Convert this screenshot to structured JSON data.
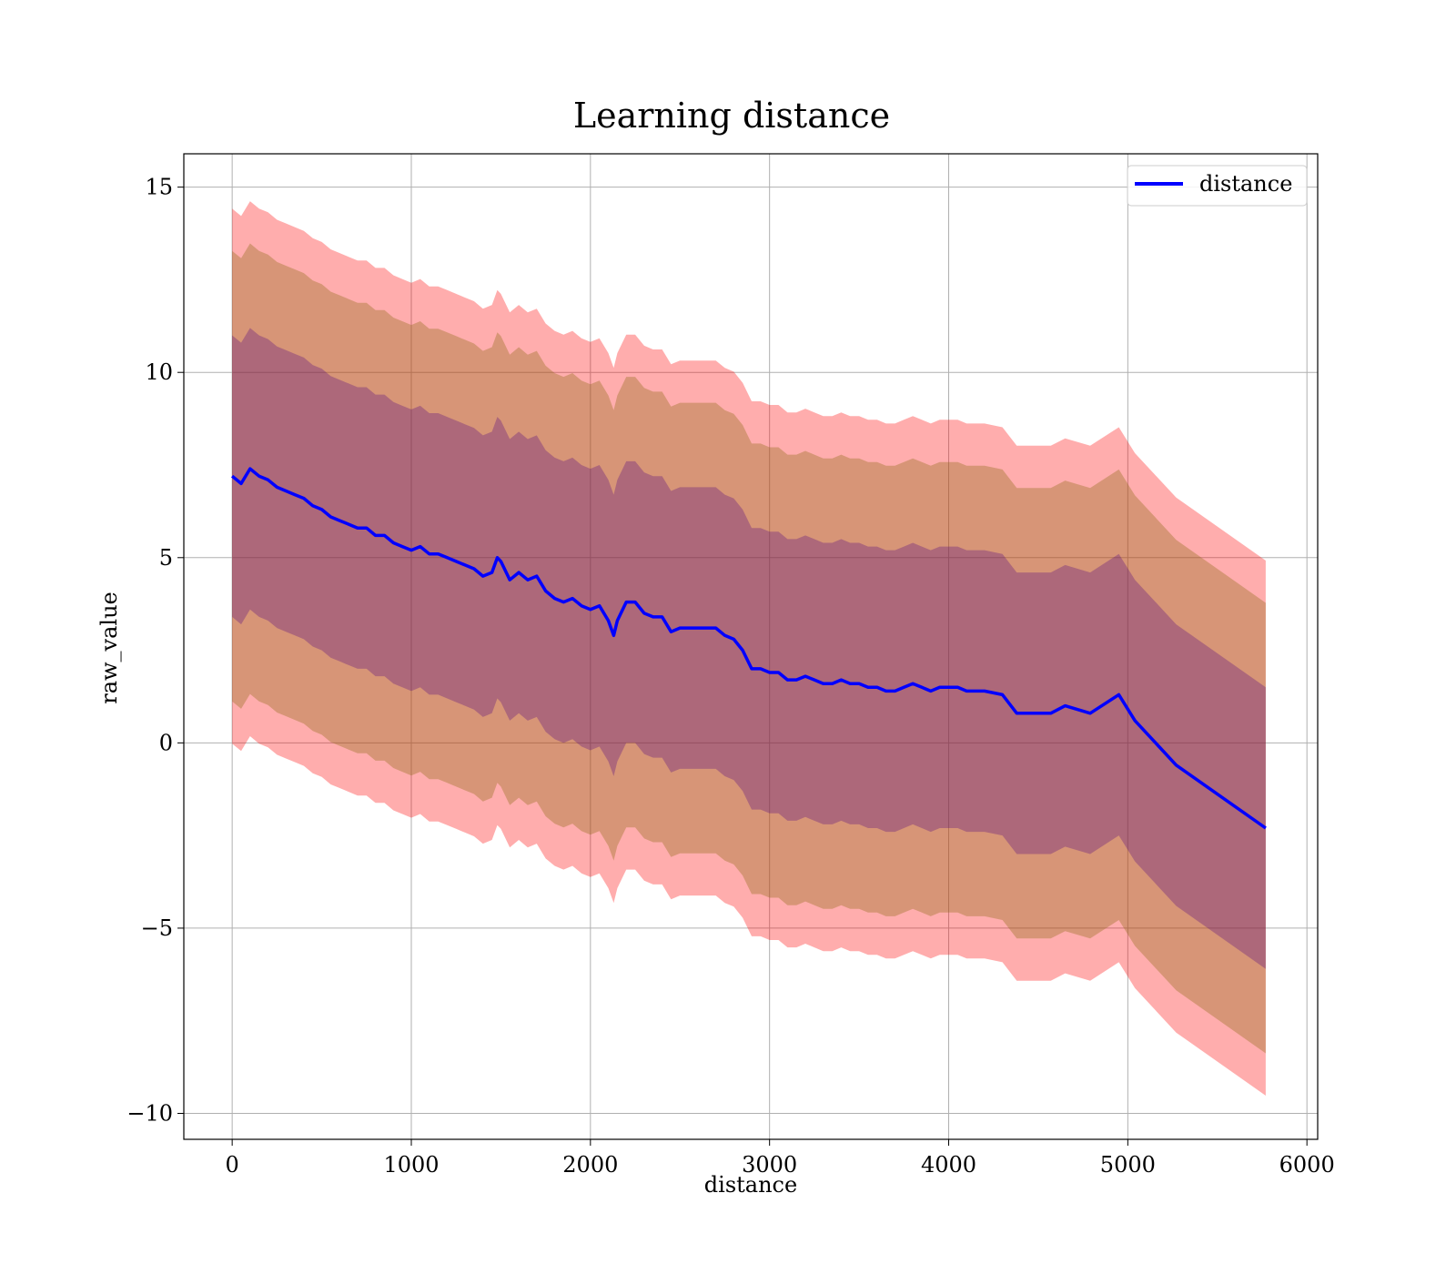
{
  "chart_data": {
    "type": "area",
    "title": "Learning distance",
    "xlabel": "distance",
    "ylabel": "raw_value",
    "xlim": [
      -270,
      6060
    ],
    "ylim": [
      -10.7,
      15.9
    ],
    "x_ticks": [
      0,
      1000,
      2000,
      3000,
      4000,
      5000,
      6000
    ],
    "y_ticks": [
      -10,
      -5,
      0,
      5,
      10,
      15
    ],
    "x_tick_labels": [
      "0",
      "1000",
      "2000",
      "3000",
      "4000",
      "5000",
      "6000"
    ],
    "y_tick_labels": [
      "−10",
      "−5",
      "0",
      "5",
      "10",
      "15"
    ],
    "grid": true,
    "legend": {
      "position": "top-right",
      "entries": [
        "distance"
      ]
    },
    "colors": {
      "line": "#0000ff",
      "band_outer": "#ff0000",
      "band_middle": "#8b6914",
      "band_inner": "#4b0082",
      "grid": "#b0b0b0"
    },
    "series": [
      {
        "name": "distance",
        "x": [
          0,
          50,
          100,
          150,
          200,
          250,
          300,
          350,
          400,
          450,
          500,
          550,
          600,
          650,
          700,
          750,
          800,
          850,
          900,
          950,
          1000,
          1050,
          1100,
          1150,
          1200,
          1250,
          1300,
          1350,
          1400,
          1450,
          1480,
          1500,
          1550,
          1600,
          1650,
          1700,
          1750,
          1800,
          1850,
          1900,
          1950,
          2000,
          2050,
          2100,
          2130,
          2150,
          2200,
          2250,
          2300,
          2350,
          2400,
          2450,
          2500,
          2550,
          2600,
          2650,
          2700,
          2750,
          2800,
          2850,
          2900,
          2950,
          3000,
          3050,
          3100,
          3150,
          3200,
          3250,
          3300,
          3350,
          3400,
          3450,
          3500,
          3550,
          3600,
          3650,
          3700,
          3750,
          3800,
          3850,
          3900,
          3950,
          4000,
          4050,
          4100,
          4200,
          4300,
          4380,
          4570,
          4650,
          4790,
          4950,
          5040,
          5270,
          5770
        ],
        "y": [
          7.2,
          7.0,
          7.4,
          7.2,
          7.1,
          6.9,
          6.8,
          6.7,
          6.6,
          6.4,
          6.3,
          6.1,
          6.0,
          5.9,
          5.8,
          5.8,
          5.6,
          5.6,
          5.4,
          5.3,
          5.2,
          5.3,
          5.1,
          5.1,
          5.0,
          4.9,
          4.8,
          4.7,
          4.5,
          4.6,
          5.0,
          4.9,
          4.4,
          4.6,
          4.4,
          4.5,
          4.1,
          3.9,
          3.8,
          3.9,
          3.7,
          3.6,
          3.7,
          3.3,
          2.9,
          3.3,
          3.8,
          3.8,
          3.5,
          3.4,
          3.4,
          3.0,
          3.1,
          3.1,
          3.1,
          3.1,
          3.1,
          2.9,
          2.8,
          2.5,
          2.0,
          2.0,
          1.9,
          1.9,
          1.7,
          1.7,
          1.8,
          1.7,
          1.6,
          1.6,
          1.7,
          1.6,
          1.6,
          1.5,
          1.5,
          1.4,
          1.4,
          1.5,
          1.6,
          1.5,
          1.4,
          1.5,
          1.5,
          1.5,
          1.4,
          1.4,
          1.3,
          0.8,
          0.8,
          1.0,
          0.8,
          1.3,
          0.6,
          -0.6,
          -2.3
        ],
        "std": [
          3.8,
          3.8,
          3.8,
          3.8,
          3.8,
          3.8,
          3.8,
          3.8,
          3.8,
          3.8,
          3.8,
          3.8,
          3.8,
          3.8,
          3.8,
          3.8,
          3.8,
          3.8,
          3.8,
          3.8,
          3.8,
          3.8,
          3.8,
          3.8,
          3.8,
          3.8,
          3.8,
          3.8,
          3.8,
          3.8,
          3.8,
          3.8,
          3.8,
          3.8,
          3.8,
          3.8,
          3.8,
          3.8,
          3.8,
          3.8,
          3.8,
          3.8,
          3.8,
          3.8,
          3.8,
          3.8,
          3.8,
          3.8,
          3.8,
          3.8,
          3.8,
          3.8,
          3.8,
          3.8,
          3.8,
          3.8,
          3.8,
          3.8,
          3.8,
          3.8,
          3.8,
          3.8,
          3.8,
          3.8,
          3.8,
          3.8,
          3.8,
          3.8,
          3.8,
          3.8,
          3.8,
          3.8,
          3.8,
          3.8,
          3.8,
          3.8,
          3.8,
          3.8,
          3.8,
          3.8,
          3.8,
          3.8,
          3.8,
          3.8,
          3.8,
          3.8,
          3.8,
          3.8,
          3.8,
          3.8,
          3.8,
          3.8,
          3.8,
          3.8,
          3.8
        ]
      }
    ],
    "bands_sigma": [
      1,
      1.6,
      1.9
    ]
  }
}
